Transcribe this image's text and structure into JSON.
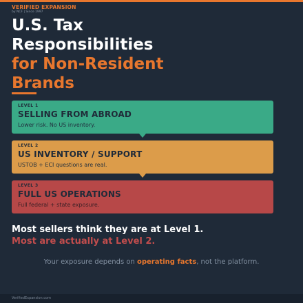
{
  "header": {
    "brand": "VERIFIED EXPANSION",
    "tagline": "by NCF | Since 1997"
  },
  "headline": {
    "line1": "U.S. Tax",
    "line2": "Responsibilities",
    "line3": "for Non-Resident",
    "line4": "Brands"
  },
  "levels": [
    {
      "number": "LEVEL 1",
      "title": "SELLING FROM ABROAD",
      "description": "Lower risk. No US inventory.",
      "color": "#3aaa87"
    },
    {
      "number": "LEVEL 2",
      "title": "US INVENTORY / SUPPORT",
      "description": "USTOB + ECI questions are real.",
      "color": "#dc9c4a"
    },
    {
      "number": "LEVEL 3",
      "title": "FULL US OPERATIONS",
      "description": "Full federal + state exposure.",
      "color": "#b74848"
    }
  ],
  "callout": {
    "line1": "Most sellers think they are at Level 1.",
    "line2": "Most are actually at Level 2."
  },
  "note": {
    "before": "Your exposure depends on ",
    "highlight": "operating facts",
    "after": ", not the platform."
  },
  "footer": {
    "site": "VerifiedExpansion.com"
  },
  "colors": {
    "accent": "#e8772e",
    "background": "#1f2a38"
  }
}
